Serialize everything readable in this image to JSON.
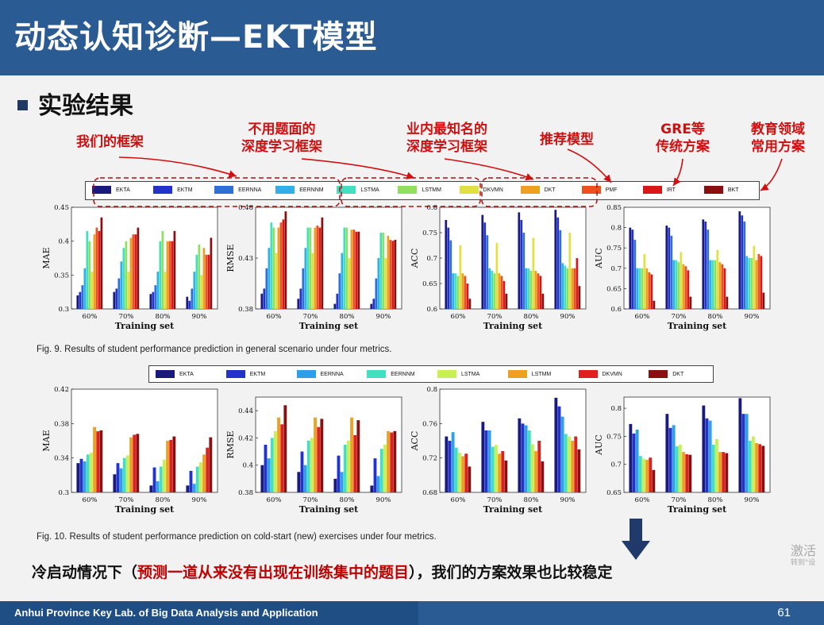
{
  "slide": {
    "title": "动态认知诊断—EKT模型",
    "section": "实验结果",
    "page_number": "61",
    "footer": "Anhui Province Key Lab. of Big Data Analysis and Application",
    "watermark": "激活",
    "watermark_sub": "转到\"设"
  },
  "annotations": [
    {
      "text": "我们的框架"
    },
    {
      "text": "不用题面的\n深度学习框架"
    },
    {
      "text": "业内最知名的\n深度学习框架"
    },
    {
      "text": "推荐模型"
    },
    {
      "text": "GRE等\n传统方案"
    },
    {
      "text": "教育领域\n常用方案"
    }
  ],
  "legend1": [
    {
      "name": "EKTA",
      "color": "#1a1a7a"
    },
    {
      "name": "EKTM",
      "color": "#2233cc"
    },
    {
      "name": "EERNNA",
      "color": "#2f6fd8"
    },
    {
      "name": "EERNNM",
      "color": "#2fb0e8"
    },
    {
      "name": "LSTMA",
      "color": "#40e0c0"
    },
    {
      "name": "LSTMM",
      "color": "#90e060"
    },
    {
      "name": "DKVMN",
      "color": "#e0e040"
    },
    {
      "name": "DKT",
      "color": "#f0a020"
    },
    {
      "name": "PMF",
      "color": "#f05020"
    },
    {
      "name": "IRT",
      "color": "#d81818"
    },
    {
      "name": "BKT",
      "color": "#8a1010"
    }
  ],
  "legend2": [
    {
      "name": "EKTA",
      "color": "#1a1a7a"
    },
    {
      "name": "EKTM",
      "color": "#2233cc"
    },
    {
      "name": "EERNNA",
      "color": "#2fa0e8"
    },
    {
      "name": "EERNNM",
      "color": "#40e0c0"
    },
    {
      "name": "LSTMA",
      "color": "#c8f050"
    },
    {
      "name": "LSTMM",
      "color": "#f0a020"
    },
    {
      "name": "DKVMN",
      "color": "#e02020"
    },
    {
      "name": "DKT",
      "color": "#8a1010"
    }
  ],
  "captions": {
    "fig9": "Fig. 9. Results of student performance prediction in general scenario under four metrics.",
    "fig10": "Fig. 10. Results of student performance prediction on cold-start (new) exercises under four metrics."
  },
  "conclusion": {
    "part1": "冷启动情况下（",
    "part2": "预测一道从来没有出现在训练集中的题目",
    "part3": "），我们的方案效果也比较稳定"
  },
  "chart_data": [
    {
      "type": "bar",
      "ylabel": "MAE",
      "xlabel": "Training set",
      "categories": [
        "60%",
        "70%",
        "80%",
        "90%"
      ],
      "ylim": [
        0.3,
        0.45
      ],
      "yticks": [
        "0.3",
        "0.35",
        "0.4",
        "0.45"
      ],
      "series": [
        {
          "values": [
            0.32,
            0.325,
            0.322,
            0.318
          ]
        },
        {
          "values": [
            0.325,
            0.33,
            0.325,
            0.312
          ]
        },
        {
          "values": [
            0.335,
            0.345,
            0.335,
            0.33
          ]
        },
        {
          "values": [
            0.36,
            0.37,
            0.355,
            0.355
          ]
        },
        {
          "values": [
            0.415,
            0.39,
            0.4,
            0.38
          ]
        },
        {
          "values": [
            0.4,
            0.4,
            0.415,
            0.395
          ]
        },
        {
          "values": [
            0.355,
            0.355,
            0.355,
            0.35
          ]
        },
        {
          "values": [
            0.41,
            0.405,
            0.4,
            0.39
          ]
        },
        {
          "values": [
            0.42,
            0.41,
            0.4,
            0.38
          ]
        },
        {
          "values": [
            0.415,
            0.41,
            0.4,
            0.38
          ]
        },
        {
          "values": [
            0.435,
            0.42,
            0.415,
            0.405
          ]
        }
      ]
    },
    {
      "type": "bar",
      "ylabel": "RMSE",
      "xlabel": "Training set",
      "categories": [
        "60%",
        "70%",
        "80%",
        "90%"
      ],
      "ylim": [
        0.38,
        0.48
      ],
      "yticks": [
        "0.38",
        "0.43",
        "0.48"
      ],
      "series": [
        {
          "values": [
            0.395,
            0.39,
            0.385,
            0.385
          ]
        },
        {
          "values": [
            0.4,
            0.4,
            0.395,
            0.39
          ]
        },
        {
          "values": [
            0.42,
            0.42,
            0.415,
            0.41
          ]
        },
        {
          "values": [
            0.44,
            0.44,
            0.435,
            0.43
          ]
        },
        {
          "values": [
            0.465,
            0.46,
            0.46,
            0.455
          ]
        },
        {
          "values": [
            0.46,
            0.46,
            0.46,
            0.455
          ]
        },
        {
          "values": [
            0.435,
            0.435,
            0.43,
            0.43
          ]
        },
        {
          "values": [
            0.46,
            0.46,
            0.458,
            0.452
          ]
        },
        {
          "values": [
            0.465,
            0.462,
            0.458,
            0.448
          ]
        },
        {
          "values": [
            0.468,
            0.46,
            0.456,
            0.447
          ]
        },
        {
          "values": [
            0.476,
            0.47,
            0.456,
            0.448
          ]
        }
      ]
    },
    {
      "type": "bar",
      "ylabel": "ACC",
      "xlabel": "Training set",
      "categories": [
        "60%",
        "70%",
        "80%",
        "90%"
      ],
      "ylim": [
        0.6,
        0.8
      ],
      "yticks": [
        "0.6",
        "0.65",
        "0.7",
        "0.75",
        "0.8"
      ],
      "series": [
        {
          "values": [
            0.775,
            0.785,
            0.79,
            0.795
          ]
        },
        {
          "values": [
            0.76,
            0.77,
            0.775,
            0.78
          ]
        },
        {
          "values": [
            0.735,
            0.745,
            0.75,
            0.755
          ]
        },
        {
          "values": [
            0.67,
            0.68,
            0.68,
            0.69
          ]
        },
        {
          "values": [
            0.67,
            0.675,
            0.68,
            0.685
          ]
        },
        {
          "values": [
            0.665,
            0.67,
            0.675,
            0.68
          ]
        },
        {
          "values": [
            0.725,
            0.73,
            0.74,
            0.75
          ]
        },
        {
          "values": [
            0.67,
            0.67,
            0.675,
            0.68
          ]
        },
        {
          "values": [
            0.665,
            0.665,
            0.67,
            0.68
          ]
        },
        {
          "values": [
            0.65,
            0.655,
            0.665,
            0.7
          ]
        },
        {
          "values": [
            0.62,
            0.63,
            0.63,
            0.645
          ]
        }
      ]
    },
    {
      "type": "bar",
      "ylabel": "AUC",
      "xlabel": "Training set",
      "categories": [
        "60%",
        "70%",
        "80%",
        "90%"
      ],
      "ylim": [
        0.6,
        0.85
      ],
      "yticks": [
        "0.6",
        "0.65",
        "0.7",
        "0.75",
        "0.8",
        "0.85"
      ],
      "series": [
        {
          "values": [
            0.8,
            0.805,
            0.82,
            0.84
          ]
        },
        {
          "values": [
            0.795,
            0.8,
            0.815,
            0.83
          ]
        },
        {
          "values": [
            0.77,
            0.78,
            0.795,
            0.815
          ]
        },
        {
          "values": [
            0.7,
            0.72,
            0.72,
            0.73
          ]
        },
        {
          "values": [
            0.7,
            0.72,
            0.72,
            0.725
          ]
        },
        {
          "values": [
            0.7,
            0.715,
            0.72,
            0.725
          ]
        },
        {
          "values": [
            0.735,
            0.74,
            0.745,
            0.755
          ]
        },
        {
          "values": [
            0.7,
            0.71,
            0.715,
            0.72
          ]
        },
        {
          "values": [
            0.69,
            0.705,
            0.71,
            0.735
          ]
        },
        {
          "values": [
            0.685,
            0.695,
            0.7,
            0.73
          ]
        },
        {
          "values": [
            0.62,
            0.63,
            0.63,
            0.64
          ]
        }
      ]
    },
    {
      "type": "bar",
      "ylabel": "MAE",
      "xlabel": "Training set",
      "categories": [
        "60%",
        "70%",
        "80%",
        "90%"
      ],
      "ylim": [
        0.3,
        0.42
      ],
      "yticks": [
        "0.3",
        "0.34",
        "0.38",
        "0.42"
      ],
      "series": [
        {
          "values": [
            0.334,
            0.321,
            0.308,
            0.308
          ]
        },
        {
          "values": [
            0.339,
            0.334,
            0.329,
            0.325
          ]
        },
        {
          "values": [
            0.336,
            0.328,
            0.313,
            0.31
          ]
        },
        {
          "values": [
            0.344,
            0.34,
            0.33,
            0.33
          ]
        },
        {
          "values": [
            0.346,
            0.343,
            0.338,
            0.335
          ]
        },
        {
          "values": [
            0.376,
            0.364,
            0.36,
            0.344
          ]
        },
        {
          "values": [
            0.371,
            0.367,
            0.361,
            0.352
          ]
        },
        {
          "values": [
            0.372,
            0.368,
            0.365,
            0.364
          ]
        }
      ]
    },
    {
      "type": "bar",
      "ylabel": "RMSE",
      "xlabel": "Training set",
      "categories": [
        "60%",
        "70%",
        "80%",
        "90%"
      ],
      "ylim": [
        0.38,
        0.45
      ],
      "yticks": [
        "0.38",
        "0.4",
        "0.42",
        "0.44"
      ],
      "series": [
        {
          "values": [
            0.4,
            0.395,
            0.39,
            0.385
          ]
        },
        {
          "values": [
            0.415,
            0.41,
            0.407,
            0.405
          ]
        },
        {
          "values": [
            0.405,
            0.4,
            0.395,
            0.392
          ]
        },
        {
          "values": [
            0.42,
            0.418,
            0.415,
            0.412
          ]
        },
        {
          "values": [
            0.425,
            0.42,
            0.418,
            0.415
          ]
        },
        {
          "values": [
            0.435,
            0.435,
            0.435,
            0.425
          ]
        },
        {
          "values": [
            0.43,
            0.428,
            0.422,
            0.424
          ]
        },
        {
          "values": [
            0.444,
            0.434,
            0.433,
            0.425
          ]
        }
      ]
    },
    {
      "type": "bar",
      "ylabel": "ACC",
      "xlabel": "Training set",
      "categories": [
        "60%",
        "70%",
        "80%",
        "90%"
      ],
      "ylim": [
        0.68,
        0.8
      ],
      "yticks": [
        "0.68",
        "0.72",
        "0.76",
        "0.8"
      ],
      "series": [
        {
          "values": [
            0.745,
            0.762,
            0.766,
            0.79
          ]
        },
        {
          "values": [
            0.74,
            0.752,
            0.76,
            0.78
          ]
        },
        {
          "values": [
            0.75,
            0.752,
            0.758,
            0.768
          ]
        },
        {
          "values": [
            0.732,
            0.733,
            0.752,
            0.748
          ]
        },
        {
          "values": [
            0.726,
            0.735,
            0.736,
            0.745
          ]
        },
        {
          "values": [
            0.722,
            0.725,
            0.728,
            0.74
          ]
        },
        {
          "values": [
            0.725,
            0.728,
            0.74,
            0.745
          ]
        },
        {
          "values": [
            0.71,
            0.717,
            0.716,
            0.73
          ]
        }
      ]
    },
    {
      "type": "bar",
      "ylabel": "AUC",
      "xlabel": "Training set",
      "categories": [
        "60%",
        "70%",
        "80%",
        "90%"
      ],
      "ylim": [
        0.65,
        0.82
      ],
      "yticks": [
        "0.65",
        "0.7",
        "0.75",
        "0.8"
      ],
      "series": [
        {
          "values": [
            0.772,
            0.79,
            0.805,
            0.818
          ]
        },
        {
          "values": [
            0.755,
            0.765,
            0.782,
            0.79
          ]
        },
        {
          "values": [
            0.762,
            0.77,
            0.778,
            0.79
          ]
        },
        {
          "values": [
            0.715,
            0.732,
            0.735,
            0.742
          ]
        },
        {
          "values": [
            0.71,
            0.735,
            0.745,
            0.75
          ]
        },
        {
          "values": [
            0.708,
            0.722,
            0.722,
            0.738
          ]
        },
        {
          "values": [
            0.712,
            0.718,
            0.722,
            0.736
          ]
        },
        {
          "values": [
            0.69,
            0.717,
            0.72,
            0.733
          ]
        }
      ]
    }
  ]
}
